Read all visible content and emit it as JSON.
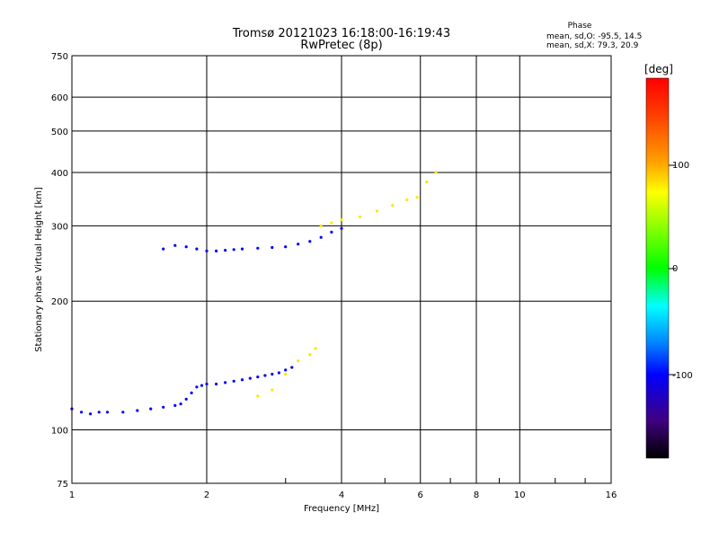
{
  "chart_data": {
    "type": "scatter",
    "title": "Tromsø 20121023 16:18:00-16:19:43",
    "subtitle": "RwPretec (8p)",
    "xlabel": "Frequency [MHz]",
    "ylabel": "Stationary phase Virtual Height [km]",
    "x_scale": "log",
    "y_scale": "log",
    "xlim": [
      1,
      16
    ],
    "ylim": [
      75,
      750
    ],
    "x_ticks": [
      "1",
      "2",
      "4",
      "6",
      "8",
      "10",
      "16"
    ],
    "y_ticks": [
      "75",
      "100",
      "200",
      "300",
      "400",
      "500",
      "600",
      "750"
    ],
    "grid": true,
    "stats": {
      "title": "Phase",
      "line1": "mean, sd,O: -95.5, 14.5",
      "line2": "mean, sd,X:  79.3, 20.9"
    },
    "colorbar": {
      "label": "[deg]",
      "range": [
        -180,
        180
      ],
      "ticks": [
        "100",
        "0",
        "-100"
      ],
      "colormap": "rainbow"
    },
    "series": [
      {
        "description": "O-mode E-region trace (phase ~ -100)",
        "phase": -100,
        "points": [
          [
            1.0,
            112
          ],
          [
            1.05,
            110
          ],
          [
            1.1,
            109
          ],
          [
            1.15,
            110
          ],
          [
            1.2,
            110
          ],
          [
            1.3,
            110
          ],
          [
            1.4,
            111
          ],
          [
            1.5,
            112
          ],
          [
            1.6,
            113
          ],
          [
            1.7,
            114
          ],
          [
            1.75,
            115
          ],
          [
            1.8,
            118
          ],
          [
            1.85,
            122
          ],
          [
            1.9,
            126
          ],
          [
            1.95,
            127
          ],
          [
            2.0,
            128
          ],
          [
            2.1,
            128
          ],
          [
            2.2,
            129
          ],
          [
            2.3,
            130
          ],
          [
            2.4,
            131
          ],
          [
            2.5,
            132
          ],
          [
            2.6,
            133
          ],
          [
            2.7,
            134
          ],
          [
            2.8,
            135
          ],
          [
            2.9,
            136
          ],
          [
            3.0,
            138
          ],
          [
            3.1,
            140
          ]
        ]
      },
      {
        "description": "O-mode F-region trace (phase ~ -100)",
        "phase": -100,
        "points": [
          [
            1.6,
            265
          ],
          [
            1.7,
            270
          ],
          [
            1.8,
            268
          ],
          [
            1.9,
            265
          ],
          [
            2.0,
            262
          ],
          [
            2.1,
            262
          ],
          [
            2.2,
            263
          ],
          [
            2.3,
            264
          ],
          [
            2.4,
            265
          ],
          [
            2.6,
            266
          ],
          [
            2.8,
            267
          ],
          [
            3.0,
            268
          ],
          [
            3.2,
            272
          ],
          [
            3.4,
            276
          ],
          [
            3.6,
            282
          ],
          [
            3.8,
            290
          ],
          [
            4.0,
            296
          ]
        ]
      },
      {
        "description": "X-mode trace (phase ~ 60 to 120)",
        "phase": 80,
        "points": [
          [
            2.6,
            120
          ],
          [
            2.8,
            124
          ],
          [
            3.0,
            135
          ],
          [
            3.2,
            145
          ],
          [
            3.4,
            150
          ],
          [
            3.5,
            155
          ],
          [
            3.6,
            300
          ],
          [
            3.8,
            305
          ],
          [
            4.0,
            310
          ],
          [
            4.4,
            315
          ],
          [
            4.8,
            325
          ],
          [
            5.2,
            335
          ],
          [
            5.6,
            345
          ],
          [
            5.9,
            350
          ],
          [
            6.2,
            380
          ],
          [
            6.5,
            400
          ]
        ]
      }
    ]
  }
}
